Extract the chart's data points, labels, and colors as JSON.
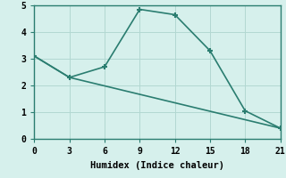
{
  "line1_x": [
    0,
    3,
    6,
    9,
    12,
    15,
    18,
    21
  ],
  "line1_y": [
    3.1,
    2.3,
    2.7,
    4.85,
    4.65,
    3.3,
    1.05,
    0.4
  ],
  "line2_x": [
    0,
    3,
    21
  ],
  "line2_y": [
    3.1,
    2.3,
    0.4
  ],
  "color": "#2a7d70",
  "bg_color": "#d6f0ec",
  "grid_color": "#b2d8d2",
  "axis_color": "#2a7d70",
  "xlabel": "Humidex (Indice chaleur)",
  "xlim": [
    0,
    21
  ],
  "ylim": [
    0,
    5
  ],
  "xticks": [
    0,
    3,
    6,
    9,
    12,
    15,
    18,
    21
  ],
  "yticks": [
    0,
    1,
    2,
    3,
    4,
    5
  ],
  "marker": "+",
  "marker_size": 5,
  "marker_linewidth": 1.5,
  "linewidth": 1.2,
  "tick_fontsize": 7,
  "xlabel_fontsize": 7.5
}
